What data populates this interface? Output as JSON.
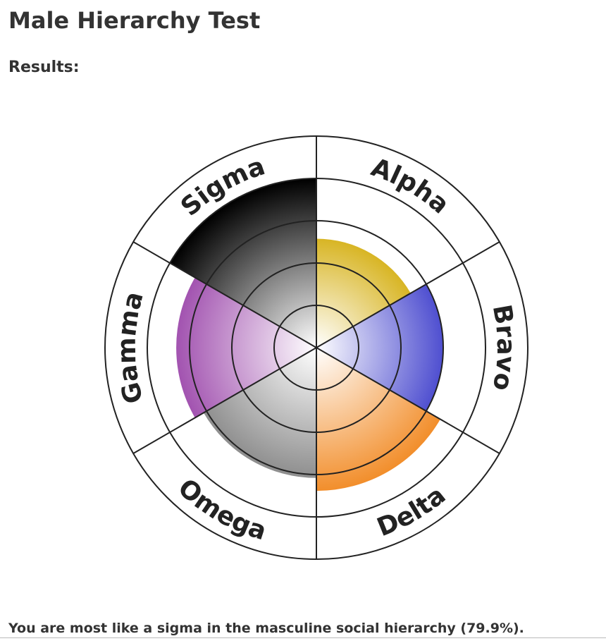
{
  "header": {
    "title": "Male Hierarchy Test",
    "subtitle": "Results:"
  },
  "chart_data": {
    "type": "polar",
    "categories": [
      "Alpha",
      "Bravo",
      "Delta",
      "Omega",
      "Gamma",
      "Sigma"
    ],
    "values": [
      51.5,
      60,
      67.7,
      61.6,
      66.3,
      79.9
    ],
    "colors": [
      "#d8b524",
      "#4f4fd0",
      "#f28e2b",
      "#8e8e8e",
      "#a253b0",
      "#000000"
    ],
    "ylim": [
      0,
      100
    ],
    "yticks": [
      20,
      40,
      60,
      80,
      100
    ],
    "grid": true
  },
  "result_text": "You are most like a sigma in the masculine social hierarchy (79.9%)."
}
